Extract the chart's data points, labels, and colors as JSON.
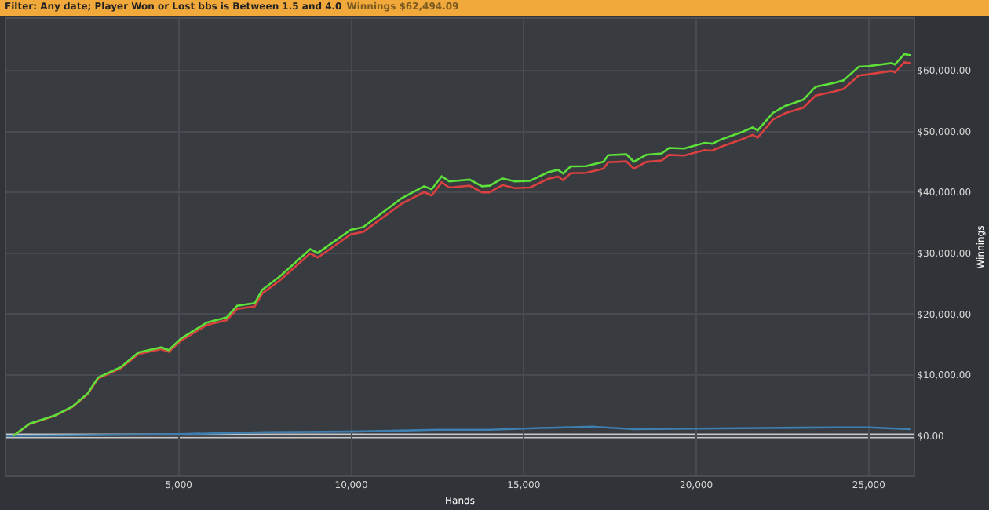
{
  "chart_data": {
    "type": "line",
    "title": "Filter: Any date; Player Won or Lost bbs is Between 1.5 and 4.0",
    "subtitle": "Winnings $62,494.09",
    "xlabel": "Hands",
    "ylabel": "Winnings",
    "xlim": [
      0,
      26300
    ],
    "xticks": [
      {
        "value": 5000,
        "label": "5,000"
      },
      {
        "value": 10000,
        "label": "10,000"
      },
      {
        "value": 15000,
        "label": "15,000"
      },
      {
        "value": 20000,
        "label": "20,000"
      },
      {
        "value": 25000,
        "label": "25,000"
      }
    ],
    "ylim": [
      -6500,
      68500
    ],
    "yticks": [
      {
        "value": 0,
        "label": "$0.00"
      },
      {
        "value": 10000,
        "label": "$10,000.00"
      },
      {
        "value": 20000,
        "label": "$20,000.00"
      },
      {
        "value": 30000,
        "label": "$30,000.00"
      },
      {
        "value": 40000,
        "label": "$40,000.00"
      },
      {
        "value": 50000,
        "label": "$50,000.00"
      },
      {
        "value": 60000,
        "label": "$60,000.00"
      }
    ],
    "grid": true,
    "marker": "none",
    "line_style": "solid",
    "ref_lines": [
      {
        "axis": "y",
        "value": 0,
        "color": "#c8c8c8"
      }
    ],
    "series": [
      {
        "color": "#3f7fb0",
        "x": [
          0,
          2000,
          5000,
          7500,
          10000,
          12500,
          14000,
          15500,
          17000,
          18200,
          20000,
          22000,
          24000,
          25000,
          26200
        ],
        "values": [
          0,
          100,
          300,
          600,
          700,
          1000,
          1000,
          1300,
          1500,
          1100,
          1200,
          1300,
          1400,
          1400,
          1100
        ]
      },
      {
        "color": "#d94040",
        "x": [
          200,
          680,
          1410,
          1920,
          2360,
          2660,
          3320,
          3830,
          4490,
          4710,
          5070,
          5810,
          6390,
          6690,
          7200,
          7420,
          7930,
          8810,
          9030,
          9980,
          10350,
          11450,
          12110,
          12330,
          12620,
          12840,
          13430,
          13790,
          14010,
          14380,
          14740,
          15180,
          15700,
          15990,
          16140,
          16360,
          16800,
          17310,
          17450,
          17970,
          18190,
          18550,
          19000,
          19210,
          19650,
          20240,
          20460,
          20750,
          21340,
          21630,
          21780,
          22220,
          22580,
          23100,
          23460,
          23980,
          24270,
          24710,
          25000,
          25660,
          25760,
          26030,
          26220
        ],
        "values": [
          0,
          1950,
          3300,
          4750,
          6850,
          9400,
          11100,
          13450,
          14250,
          13800,
          15650,
          18200,
          19000,
          20850,
          21250,
          23400,
          25550,
          29950,
          29300,
          33100,
          33500,
          38100,
          40050,
          39500,
          41650,
          40800,
          41100,
          40000,
          40000,
          41200,
          40700,
          40800,
          42200,
          42600,
          42000,
          43150,
          43200,
          43900,
          44950,
          45100,
          43900,
          45000,
          45250,
          46150,
          46050,
          46950,
          46850,
          47550,
          48750,
          49450,
          49000,
          51950,
          53000,
          53900,
          55900,
          56550,
          57000,
          59200,
          59400,
          59950,
          59700,
          61350,
          61200
        ]
      },
      {
        "color": "#5ee03a",
        "x": [
          200,
          680,
          1410,
          1920,
          2360,
          2660,
          3320,
          3830,
          4490,
          4710,
          5070,
          5810,
          6390,
          6690,
          7200,
          7420,
          7930,
          8810,
          9030,
          9980,
          10350,
          11450,
          12110,
          12330,
          12620,
          12840,
          13430,
          13790,
          14010,
          14380,
          14740,
          15180,
          15700,
          15990,
          16140,
          16360,
          16800,
          17310,
          17450,
          17970,
          18190,
          18550,
          19000,
          19210,
          19650,
          20240,
          20460,
          20750,
          21340,
          21630,
          21780,
          22220,
          22580,
          23100,
          23460,
          23980,
          24270,
          24710,
          25000,
          25660,
          25760,
          26030,
          26220
        ],
        "values": [
          0,
          2000,
          3360,
          4830,
          6980,
          9560,
          11300,
          13700,
          14550,
          14100,
          16000,
          18600,
          19460,
          21370,
          21800,
          24000,
          26200,
          30670,
          30050,
          33850,
          34300,
          39000,
          41000,
          40500,
          42640,
          41800,
          42100,
          41000,
          41100,
          42300,
          41800,
          41900,
          43300,
          43700,
          43100,
          44270,
          44300,
          45040,
          46100,
          46250,
          45040,
          46170,
          46400,
          47300,
          47200,
          48140,
          48000,
          48760,
          49950,
          50650,
          50200,
          53050,
          54190,
          55220,
          57360,
          57960,
          58400,
          60650,
          60740,
          61240,
          61000,
          62700,
          62500
        ]
      }
    ]
  }
}
